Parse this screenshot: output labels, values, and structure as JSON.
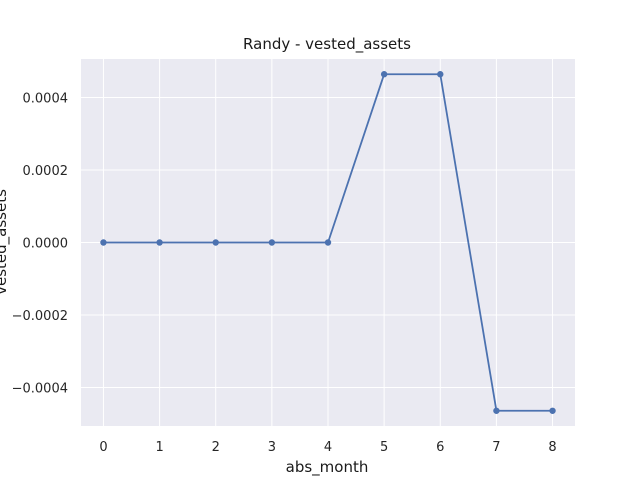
{
  "chart_data": {
    "type": "line",
    "title": "Randy - vested_assets",
    "xlabel": "abs_month",
    "ylabel": "vested_assets",
    "x": [
      0,
      1,
      2,
      3,
      4,
      5,
      6,
      7,
      8
    ],
    "series": [
      {
        "values": [
          0,
          0,
          0,
          0,
          0,
          0.000464,
          0.000464,
          -0.000464,
          -0.000464
        ]
      }
    ],
    "xlim": [
      -0.4,
      8.4
    ],
    "ylim": [
      -0.000506,
      0.000506
    ],
    "x_ticks": [
      0,
      1,
      2,
      3,
      4,
      5,
      6,
      7,
      8
    ],
    "x_tick_labels": [
      "0",
      "1",
      "2",
      "3",
      "4",
      "5",
      "6",
      "7",
      "8"
    ],
    "y_ticks": [
      0.0004,
      0.0002,
      0.0,
      -0.0002,
      -0.0004
    ],
    "y_tick_labels": [
      "0.0004",
      "0.0002",
      "0.0000",
      "−0.0002",
      "−0.0004"
    ],
    "grid": true,
    "legend": false,
    "colors": {
      "background": "#eaeaf2",
      "grid": "#ffffff",
      "line": "#4c72b0"
    }
  }
}
